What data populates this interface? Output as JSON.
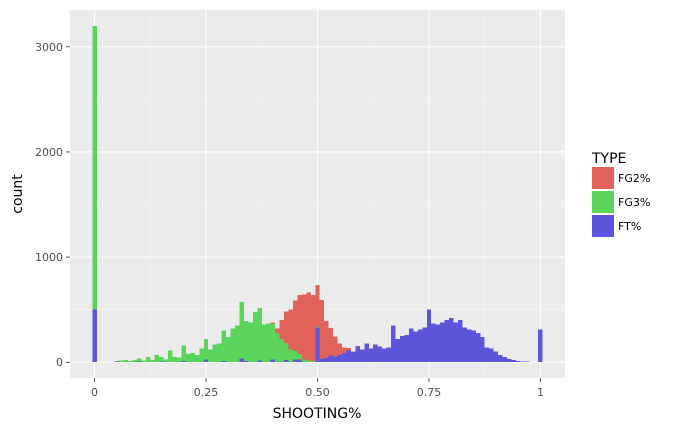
{
  "chart_data": {
    "type": "bar",
    "xlabel": "SHOOTING%",
    "ylabel": "count",
    "xlim": [
      -0.055,
      1.055
    ],
    "ylim": [
      -150,
      3350
    ],
    "x_ticks": [
      0,
      0.25,
      0.5,
      0.75,
      1
    ],
    "x_tick_labels": [
      "0",
      "0.25",
      "0.50",
      "0.75",
      "1"
    ],
    "y_ticks": [
      0,
      1000,
      2000,
      3000
    ],
    "y_tick_labels": [
      "0",
      "1000",
      "2000",
      "3000"
    ],
    "grid": true,
    "bin_width": 0.01,
    "stacked": true,
    "legend": {
      "title": "TYPE",
      "position": "right",
      "entries": [
        {
          "label": "FG2%",
          "color": "#e0625a"
        },
        {
          "label": "FG3%",
          "color": "#5bd45b"
        },
        {
          "label": "FT%",
          "color": "#5e55dd"
        }
      ]
    },
    "series": [
      {
        "name": "FT%",
        "color": "#5e55dd",
        "points": [
          [
            0,
            500
          ],
          [
            0.05,
            5
          ],
          [
            0.1,
            5
          ],
          [
            0.15,
            8
          ],
          [
            0.2,
            10
          ],
          [
            0.25,
            25
          ],
          [
            0.29,
            12
          ],
          [
            0.33,
            35
          ],
          [
            0.34,
            12
          ],
          [
            0.37,
            18
          ],
          [
            0.4,
            28
          ],
          [
            0.43,
            22
          ],
          [
            0.45,
            25
          ],
          [
            0.46,
            28
          ],
          [
            0.5,
            330
          ],
          [
            0.51,
            30
          ],
          [
            0.52,
            40
          ],
          [
            0.53,
            65
          ],
          [
            0.54,
            55
          ],
          [
            0.55,
            70
          ],
          [
            0.56,
            90
          ],
          [
            0.57,
            115
          ],
          [
            0.58,
            95
          ],
          [
            0.59,
            150
          ],
          [
            0.6,
            120
          ],
          [
            0.61,
            180
          ],
          [
            0.62,
            130
          ],
          [
            0.63,
            170
          ],
          [
            0.64,
            150
          ],
          [
            0.65,
            130
          ],
          [
            0.66,
            140
          ],
          [
            0.67,
            350
          ],
          [
            0.68,
            220
          ],
          [
            0.69,
            250
          ],
          [
            0.7,
            260
          ],
          [
            0.71,
            320
          ],
          [
            0.72,
            290
          ],
          [
            0.73,
            310
          ],
          [
            0.74,
            330
          ],
          [
            0.75,
            500
          ],
          [
            0.76,
            370
          ],
          [
            0.77,
            360
          ],
          [
            0.78,
            380
          ],
          [
            0.79,
            400
          ],
          [
            0.8,
            420
          ],
          [
            0.81,
            380
          ],
          [
            0.82,
            400
          ],
          [
            0.83,
            330
          ],
          [
            0.84,
            310
          ],
          [
            0.85,
            300
          ],
          [
            0.86,
            280
          ],
          [
            0.87,
            240
          ],
          [
            0.88,
            140
          ],
          [
            0.89,
            130
          ],
          [
            0.9,
            100
          ],
          [
            0.91,
            70
          ],
          [
            0.92,
            50
          ],
          [
            0.93,
            30
          ],
          [
            0.94,
            20
          ],
          [
            0.95,
            10
          ],
          [
            0.96,
            8
          ],
          [
            0.97,
            5
          ],
          [
            1,
            310
          ]
        ]
      },
      {
        "name": "FG3%",
        "color": "#5bd45b",
        "points": [
          [
            0,
            2700
          ],
          [
            0.05,
            5
          ],
          [
            0.06,
            15
          ],
          [
            0.07,
            20
          ],
          [
            0.08,
            10
          ],
          [
            0.09,
            20
          ],
          [
            0.1,
            30
          ],
          [
            0.11,
            15
          ],
          [
            0.12,
            50
          ],
          [
            0.13,
            20
          ],
          [
            0.14,
            70
          ],
          [
            0.15,
            40
          ],
          [
            0.16,
            25
          ],
          [
            0.17,
            110
          ],
          [
            0.18,
            50
          ],
          [
            0.19,
            45
          ],
          [
            0.2,
            150
          ],
          [
            0.21,
            80
          ],
          [
            0.22,
            90
          ],
          [
            0.23,
            70
          ],
          [
            0.24,
            130
          ],
          [
            0.25,
            195
          ],
          [
            0.26,
            120
          ],
          [
            0.27,
            170
          ],
          [
            0.28,
            180
          ],
          [
            0.29,
            290
          ],
          [
            0.3,
            240
          ],
          [
            0.31,
            320
          ],
          [
            0.32,
            350
          ],
          [
            0.33,
            540
          ],
          [
            0.34,
            380
          ],
          [
            0.35,
            380
          ],
          [
            0.36,
            480
          ],
          [
            0.37,
            500
          ],
          [
            0.38,
            360
          ],
          [
            0.39,
            370
          ],
          [
            0.4,
            340
          ],
          [
            0.41,
            280
          ],
          [
            0.42,
            220
          ],
          [
            0.43,
            160
          ],
          [
            0.44,
            120
          ],
          [
            0.45,
            80
          ],
          [
            0.46,
            50
          ],
          [
            0.47,
            25
          ],
          [
            0.48,
            15
          ],
          [
            0.49,
            10
          ],
          [
            0.5,
            5
          ]
        ]
      },
      {
        "name": "FG2%",
        "color": "#e0625a",
        "points": [
          [
            0.4,
            10
          ],
          [
            0.41,
            40
          ],
          [
            0.42,
            180
          ],
          [
            0.43,
            300
          ],
          [
            0.44,
            380
          ],
          [
            0.45,
            480
          ],
          [
            0.46,
            560
          ],
          [
            0.47,
            620
          ],
          [
            0.48,
            650
          ],
          [
            0.49,
            630
          ],
          [
            0.5,
            400
          ],
          [
            0.51,
            560
          ],
          [
            0.52,
            350
          ],
          [
            0.53,
            260
          ],
          [
            0.54,
            190
          ],
          [
            0.55,
            110
          ],
          [
            0.56,
            50
          ],
          [
            0.57,
            20
          ],
          [
            0.58,
            8
          ],
          [
            0.59,
            3
          ]
        ]
      }
    ]
  }
}
